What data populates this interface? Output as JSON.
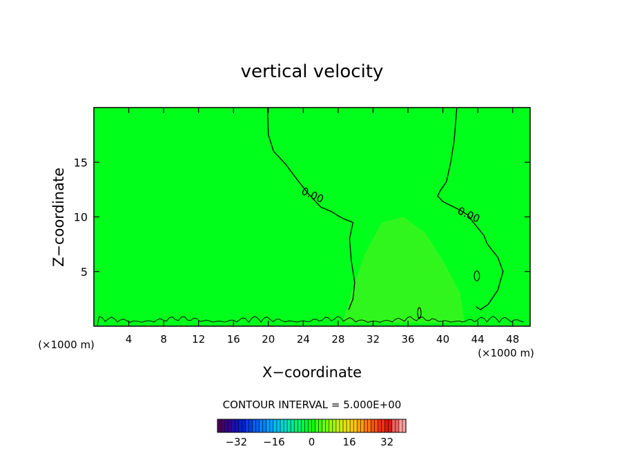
{
  "chart_data": {
    "type": "contour",
    "title": "vertical velocity",
    "xlabel": "X−coordinate",
    "ylabel": "Z−coordinate",
    "x_unit": "(×1000 m)",
    "y_unit": "(×1000 m)",
    "xlim": [
      0,
      50
    ],
    "ylim": [
      0,
      20
    ],
    "x_ticks": [
      4,
      8,
      12,
      16,
      20,
      24,
      28,
      32,
      36,
      40,
      44,
      48
    ],
    "y_ticks": [
      5,
      10,
      15
    ],
    "contour_interval_label": "CONTOUR INTERVAL = 5.000E+00",
    "contour_labels": [
      {
        "text": "0.00",
        "x": 24.9,
        "z": 11.7
      },
      {
        "text": "0.00",
        "x": 42.8,
        "z": 9.9
      }
    ],
    "zero_contours": [
      [
        [
          19.9,
          20
        ],
        [
          20.0,
          17.5
        ],
        [
          20.6,
          16.0
        ],
        [
          22.0,
          14.8
        ],
        [
          23.4,
          13.3
        ],
        [
          24.6,
          12.1
        ],
        [
          26.0,
          10.9
        ],
        [
          27.2,
          10.5
        ],
        [
          28.0,
          10.1
        ],
        [
          28.7,
          9.8
        ],
        [
          29.7,
          9.5
        ],
        [
          29.3,
          8.0
        ],
        [
          29.5,
          6.0
        ],
        [
          29.9,
          4.0
        ],
        [
          29.7,
          2.5
        ],
        [
          29.2,
          1.5
        ]
      ],
      [
        [
          41.6,
          20
        ],
        [
          41.3,
          17.0
        ],
        [
          40.9,
          15.0
        ],
        [
          40.4,
          13.2
        ],
        [
          39.7,
          12.4
        ],
        [
          39.4,
          11.9
        ],
        [
          40.0,
          11.4
        ],
        [
          41.0,
          11.0
        ],
        [
          42.0,
          10.6
        ],
        [
          42.8,
          10.2
        ],
        [
          43.8,
          9.2
        ],
        [
          44.7,
          8.3
        ],
        [
          45.1,
          7.5
        ],
        [
          46.3,
          6.3
        ],
        [
          46.9,
          5.0
        ],
        [
          46.3,
          3.3
        ],
        [
          45.2,
          2.0
        ],
        [
          44.3,
          1.5
        ],
        [
          43.8,
          1.8
        ]
      ]
    ],
    "small_contours": [
      {
        "x": 43.9,
        "z": 4.6,
        "rx": 0.3,
        "rz": 0.45
      },
      {
        "x": 37.3,
        "z": 1.2,
        "rx": 0.2,
        "rz": 0.5
      }
    ],
    "field_colors": {
      "background": "#00ff1a",
      "updraft_tint": "#5aef22"
    },
    "colorbar": {
      "ticks": [
        -32,
        -16,
        0,
        16,
        32
      ],
      "range": [
        -40,
        40
      ],
      "colors": [
        "#4a0060",
        "#35008a",
        "#1a10b0",
        "#0020d0",
        "#0040e0",
        "#0060f0",
        "#0080ff",
        "#00a0ff",
        "#00c0f0",
        "#00d8d0",
        "#00e8a0",
        "#00f070",
        "#00f840",
        "#10ff10",
        "#40ff10",
        "#70ff10",
        "#a0f810",
        "#c8f010",
        "#e8e010",
        "#ffc810",
        "#ffa010",
        "#ff7810",
        "#ff5010",
        "#f03010",
        "#e01810",
        "#f06060",
        "#f8a0a0"
      ]
    }
  }
}
